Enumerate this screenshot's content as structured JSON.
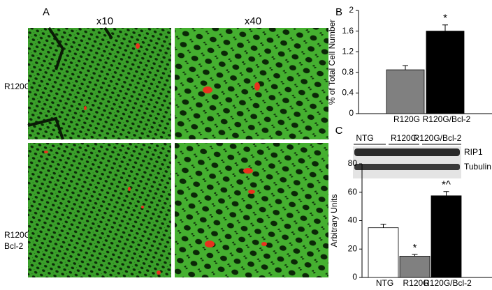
{
  "panel_a": {
    "panel": "A",
    "columns": [
      "x10",
      "x40"
    ],
    "rows": [
      [
        "R120G"
      ],
      [
        "R120G/",
        "Bcl-2"
      ]
    ]
  },
  "blot": {
    "groups": [
      "NTG",
      "R120G",
      "R120G/Bcl-2"
    ],
    "bands": [
      "RIP1",
      "Tubulin"
    ]
  },
  "chart_data": [
    {
      "type": "bar",
      "panel": "B",
      "ylabel": "% of Total Cell Number",
      "categories": [
        "R120G",
        "R120G/Bcl-2"
      ],
      "values": [
        0.85,
        1.6
      ],
      "errors": [
        0.08,
        0.12
      ],
      "colors": [
        "#808080",
        "#000000"
      ],
      "annotations": [
        null,
        "*"
      ],
      "ylim": [
        0,
        2
      ],
      "yticks": [
        0,
        0.4,
        0.8,
        1.2,
        1.6,
        2
      ]
    },
    {
      "type": "bar",
      "panel": "C",
      "ylabel": "Arbitrary Units",
      "categories": [
        "NTG",
        "R120G",
        "R120G/Bcl-2"
      ],
      "values": [
        35,
        15,
        57.5
      ],
      "errors": [
        2.5,
        1.2,
        3
      ],
      "colors": [
        "#ffffff",
        "#808080",
        "#000000"
      ],
      "annotations": [
        null,
        "*",
        "*^"
      ],
      "ylim": [
        0,
        80
      ],
      "yticks": [
        0,
        20,
        40,
        60,
        80
      ]
    }
  ]
}
